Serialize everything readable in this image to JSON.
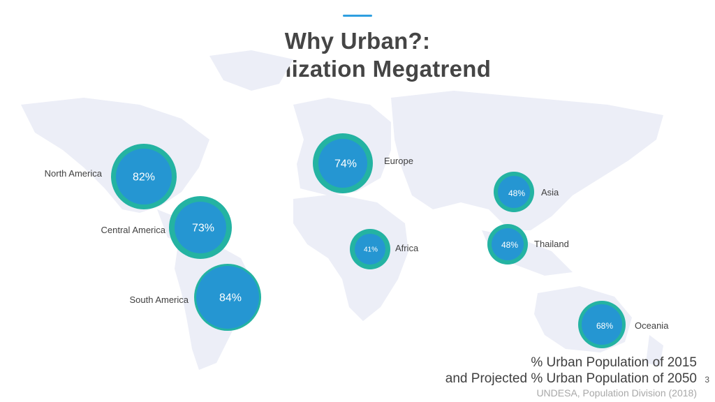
{
  "title": {
    "line1": "Why Urban?:",
    "line2": "Urbanization Megatrend"
  },
  "regions": [
    {
      "name": "North America",
      "value": "82%"
    },
    {
      "name": "Central America",
      "value": "73%"
    },
    {
      "name": "South America",
      "value": "84%"
    },
    {
      "name": "Europe",
      "value": "74%"
    },
    {
      "name": "Africa",
      "value": "41%"
    },
    {
      "name": "Asia",
      "value": "48%"
    },
    {
      "name": "Thailand",
      "value": "48%"
    },
    {
      "name": "Oceania",
      "value": "68%"
    }
  ],
  "legend": {
    "line1": "% Urban Population of 2015",
    "line2": "and Projected % Urban Population of  2050"
  },
  "source": "UNDESA, Population Division (2018)",
  "page_number": "3",
  "colors": {
    "accent": "#2f9fe0",
    "ring_2050": "#24b3a2",
    "core_2015": "#2596d2",
    "map_land": "#eceef7",
    "title": "#454545"
  }
}
